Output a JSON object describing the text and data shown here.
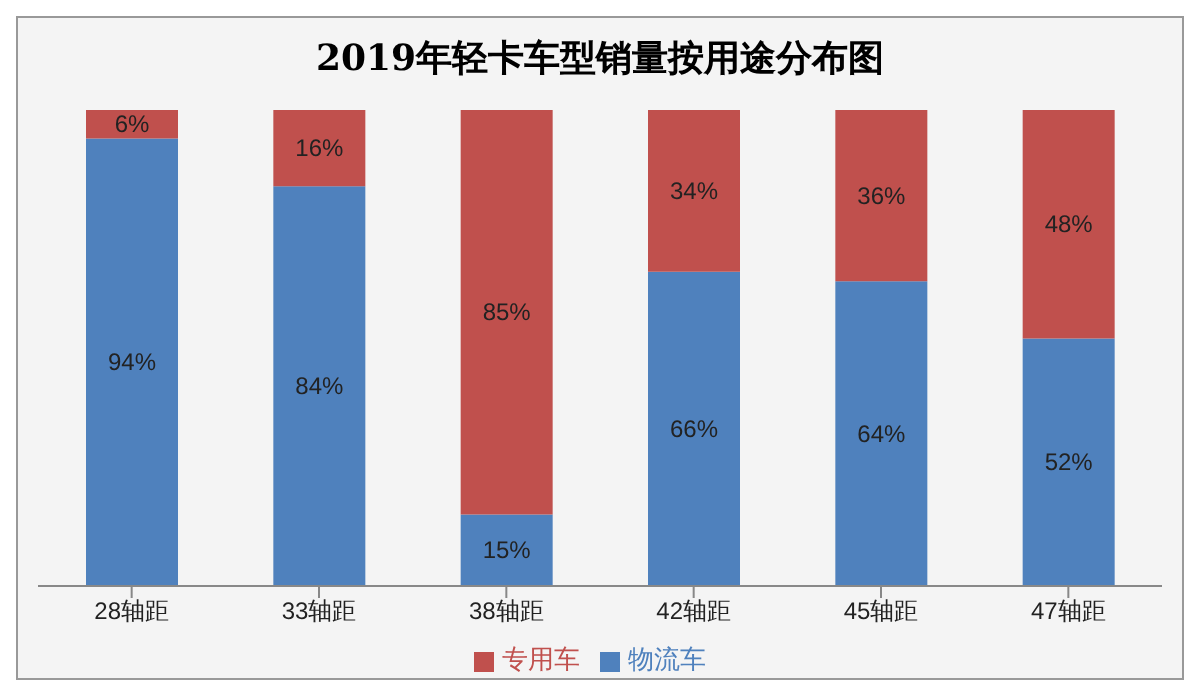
{
  "chart_data": {
    "type": "bar",
    "title": "2019年轻卡车型销量按用途分布图",
    "categories": [
      "28轴距",
      "33轴距",
      "38轴距",
      "42轴距",
      "45轴距",
      "47轴距"
    ],
    "stacked": true,
    "ylim": [
      0,
      100
    ],
    "tick_labels": "x",
    "legend": "bottom",
    "grid": false,
    "series": [
      {
        "name": "物流车",
        "color": "#4f81bd",
        "values": [
          94,
          84,
          15,
          66,
          64,
          52
        ],
        "value_labels": [
          "94%",
          "84%",
          "15%",
          "66%",
          "64%",
          "52%"
        ]
      },
      {
        "name": "专用车",
        "color": "#c0504d",
        "values": [
          6,
          16,
          85,
          34,
          36,
          48
        ],
        "value_labels": [
          "6%",
          "16%",
          "85%",
          "34%",
          "36%",
          "48%"
        ]
      }
    ]
  }
}
